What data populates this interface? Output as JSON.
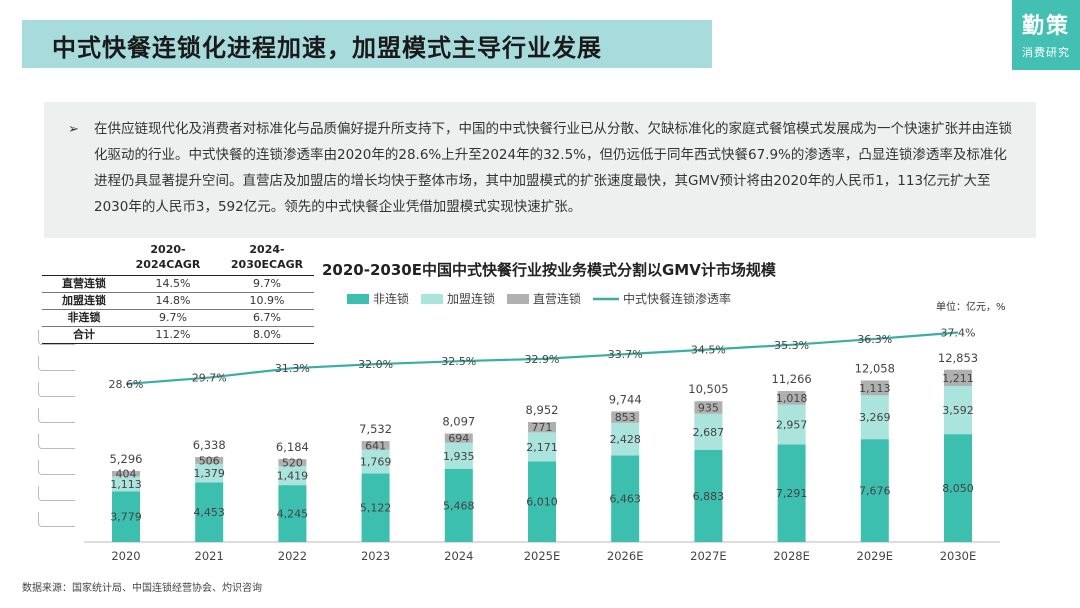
{
  "header": {
    "title": "中式快餐连锁化进程加速，加盟模式主导行业发展",
    "logo_main": "勤策",
    "logo_sub": "消费研究"
  },
  "summary": {
    "bullet": "➢",
    "text": "在供应链现代化及消费者对标准化与品质偏好提升所支持下，中国的中式快餐行业已从分散、欠缺标准化的家庭式餐馆模式发展成为一个快速扩张并由连锁化驱动的行业。中式快餐的连锁渗透率由2020年的28.6%上升至2024年的32.5%，但仍远低于同年西式快餐67.9%的渗透率，凸显连锁渗透率及标准化进程仍具显著提升空间。直营店及加盟店的增长均快于整体市场，其中加盟模式的扩张速度最快，其GMV预计将由2020年的人民币1，113亿元扩大至2030年的人民币3，592亿元。领先的中式快餐企业凭借加盟模式实现快速扩张。"
  },
  "cagr_table": {
    "col1": [
      "2020-",
      "2024CAGR"
    ],
    "col2": [
      "2024-",
      "2030ECAGR"
    ],
    "rows": [
      {
        "label": "直营连锁",
        "v1": "14.5%",
        "v2": "9.7%"
      },
      {
        "label": "加盟连锁",
        "v1": "14.8%",
        "v2": "10.9%"
      },
      {
        "label": "非连锁",
        "v1": "9.7%",
        "v2": "6.7%"
      },
      {
        "label": "合计",
        "v1": "11.2%",
        "v2": "8.0%"
      }
    ]
  },
  "unit_label": "单位：亿元，%",
  "source": "数据来源：国家统计局、中国连锁经营协会、灼识咨询",
  "colors": {
    "non_chain": "#3dbfb0",
    "franchise": "#aae4dc",
    "direct": "#b0b0b0",
    "line": "#3aaea6"
  },
  "chart_data": {
    "type": "bar",
    "title": "2020-2030E中国中式快餐行业按业务模式分割以GMV计市场规模",
    "categories": [
      "2020",
      "2021",
      "2022",
      "2023",
      "2024",
      "2025E",
      "2026E",
      "2027E",
      "2028E",
      "2029E",
      "2030E"
    ],
    "series": [
      {
        "name": "非连锁",
        "values": [
          3779,
          4453,
          4245,
          5122,
          5468,
          6010,
          6463,
          6883,
          7291,
          7676,
          8050
        ]
      },
      {
        "name": "加盟连锁",
        "values": [
          1113,
          1379,
          1419,
          1769,
          1935,
          2171,
          2428,
          2687,
          2957,
          3269,
          3592
        ]
      },
      {
        "name": "直营连锁",
        "values": [
          404,
          506,
          520,
          641,
          694,
          771,
          853,
          935,
          1018,
          1113,
          1211
        ]
      }
    ],
    "totals": [
      5296,
      6338,
      6184,
      7532,
      8097,
      8952,
      9744,
      10505,
      11266,
      12058,
      12853
    ],
    "line": {
      "name": "中式快餐连锁渗透率",
      "values": [
        28.6,
        29.7,
        31.3,
        32.0,
        32.5,
        32.9,
        33.7,
        34.5,
        35.3,
        36.3,
        37.4
      ],
      "suffix": "%"
    },
    "legend_position": "top-left",
    "grid": false
  }
}
